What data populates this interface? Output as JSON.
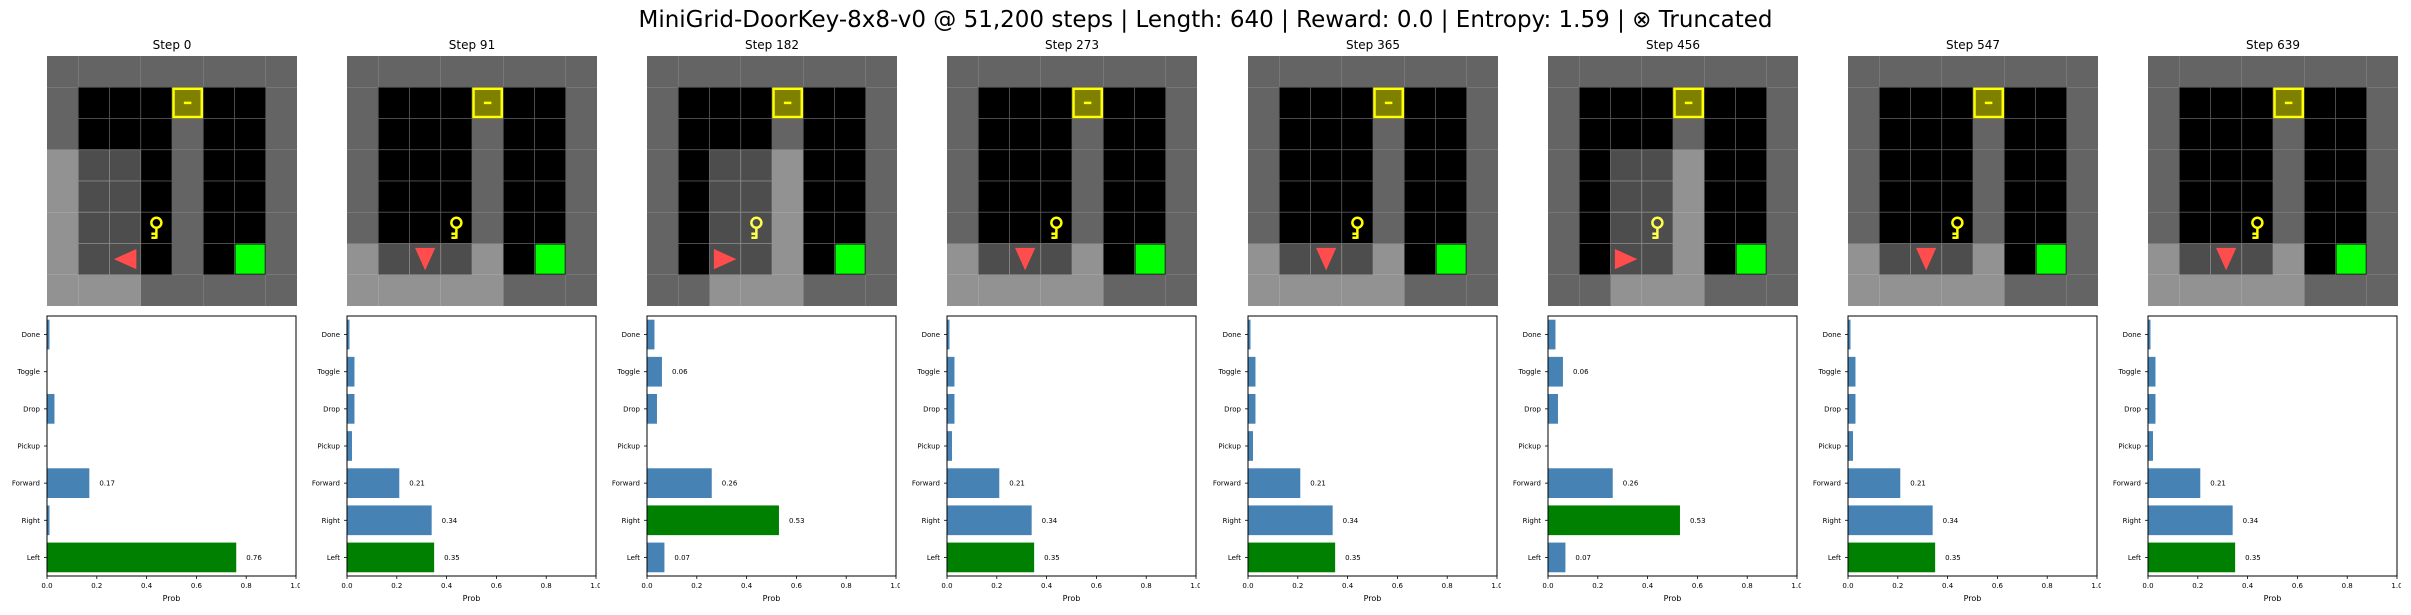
{
  "figure": {
    "title": "MiniGrid-DoorKey-8x8-v0 @ 51,200 steps | Length: 640 | Reward: 0.0 | Entropy: 1.59 | ⊗ Truncated"
  },
  "colors": {
    "wall": "#646464",
    "floor": "#000000",
    "grid_line": "#555555",
    "seen_overlay": "#9a9a9a",
    "door": "#7f7f00",
    "door_border": "#ffff00",
    "key": "#ffff00",
    "goal": "#00ff00",
    "agent": "#ff4c4c",
    "bar": "#4682b4",
    "bar_selected": "#008000"
  },
  "env": {
    "grid_size": 8,
    "door": {
      "col": 4,
      "row": 1
    },
    "key": {
      "col": 3,
      "row": 5
    },
    "goal": {
      "col": 6,
      "row": 6
    },
    "wall_column": 4
  },
  "steps": [
    {
      "label": "Step 0",
      "agent": {
        "col": 2,
        "row": 6,
        "dir": "left"
      },
      "view": {
        "col0": 0,
        "col1": 2,
        "row0": 3,
        "row1": 7
      }
    },
    {
      "label": "Step 91",
      "agent": {
        "col": 2,
        "row": 6,
        "dir": "down"
      },
      "view": {
        "col0": 0,
        "col1": 4,
        "row0": 6,
        "row1": 7
      }
    },
    {
      "label": "Step 182",
      "agent": {
        "col": 2,
        "row": 6,
        "dir": "right"
      },
      "view": {
        "col0": 2,
        "col1": 4,
        "row0": 3,
        "row1": 7
      }
    },
    {
      "label": "Step 273",
      "agent": {
        "col": 2,
        "row": 6,
        "dir": "down"
      },
      "view": {
        "col0": 0,
        "col1": 4,
        "row0": 6,
        "row1": 7
      }
    },
    {
      "label": "Step 365",
      "agent": {
        "col": 2,
        "row": 6,
        "dir": "down"
      },
      "view": {
        "col0": 0,
        "col1": 4,
        "row0": 6,
        "row1": 7
      }
    },
    {
      "label": "Step 456",
      "agent": {
        "col": 2,
        "row": 6,
        "dir": "right"
      },
      "view": {
        "col0": 2,
        "col1": 4,
        "row0": 3,
        "row1": 7
      }
    },
    {
      "label": "Step 547",
      "agent": {
        "col": 2,
        "row": 6,
        "dir": "down"
      },
      "view": {
        "col0": 0,
        "col1": 4,
        "row0": 6,
        "row1": 7
      }
    },
    {
      "label": "Step 639",
      "agent": {
        "col": 2,
        "row": 6,
        "dir": "down"
      },
      "view": {
        "col0": 0,
        "col1": 4,
        "row0": 6,
        "row1": 7
      }
    }
  ],
  "chart_data": [
    {
      "type": "bar",
      "orientation": "horizontal",
      "categories": [
        "Left",
        "Right",
        "Forward",
        "Pickup",
        "Drop",
        "Toggle",
        "Done"
      ],
      "values": [
        0.76,
        0.01,
        0.17,
        0.0,
        0.03,
        0.0,
        0.01
      ],
      "selected": "Left",
      "xlabel": "Prob",
      "xlim": [
        0,
        1
      ],
      "xticks": [
        "0.0",
        "0.2",
        "0.4",
        "0.6",
        "0.8",
        "1.0"
      ],
      "data_labels": [
        {
          "category": "Left",
          "text": "0.76"
        },
        {
          "category": "Forward",
          "text": "0.17"
        }
      ]
    },
    {
      "type": "bar",
      "orientation": "horizontal",
      "categories": [
        "Left",
        "Right",
        "Forward",
        "Pickup",
        "Drop",
        "Toggle",
        "Done"
      ],
      "values": [
        0.35,
        0.34,
        0.21,
        0.02,
        0.03,
        0.03,
        0.01
      ],
      "selected": "Left",
      "xlabel": "Prob",
      "xlim": [
        0,
        1
      ],
      "xticks": [
        "0.0",
        "0.2",
        "0.4",
        "0.6",
        "0.8",
        "1.0"
      ],
      "data_labels": [
        {
          "category": "Left",
          "text": "0.35"
        },
        {
          "category": "Right",
          "text": "0.34"
        },
        {
          "category": "Forward",
          "text": "0.21"
        }
      ]
    },
    {
      "type": "bar",
      "orientation": "horizontal",
      "categories": [
        "Left",
        "Right",
        "Forward",
        "Pickup",
        "Drop",
        "Toggle",
        "Done"
      ],
      "values": [
        0.07,
        0.53,
        0.26,
        0.0,
        0.04,
        0.06,
        0.03
      ],
      "selected": "Right",
      "xlabel": "Prob",
      "xlim": [
        0,
        1
      ],
      "xticks": [
        "0.0",
        "0.2",
        "0.4",
        "0.6",
        "0.8",
        "1.0"
      ],
      "data_labels": [
        {
          "category": "Left",
          "text": "0.07"
        },
        {
          "category": "Right",
          "text": "0.53"
        },
        {
          "category": "Forward",
          "text": "0.26"
        },
        {
          "category": "Toggle",
          "text": "0.06"
        }
      ]
    },
    {
      "type": "bar",
      "orientation": "horizontal",
      "categories": [
        "Left",
        "Right",
        "Forward",
        "Pickup",
        "Drop",
        "Toggle",
        "Done"
      ],
      "values": [
        0.35,
        0.34,
        0.21,
        0.02,
        0.03,
        0.03,
        0.01
      ],
      "selected": "Left",
      "xlabel": "Prob",
      "xlim": [
        0,
        1
      ],
      "xticks": [
        "0.0",
        "0.2",
        "0.4",
        "0.6",
        "0.8",
        "1.0"
      ],
      "data_labels": [
        {
          "category": "Left",
          "text": "0.35"
        },
        {
          "category": "Right",
          "text": "0.34"
        },
        {
          "category": "Forward",
          "text": "0.21"
        }
      ]
    },
    {
      "type": "bar",
      "orientation": "horizontal",
      "categories": [
        "Left",
        "Right",
        "Forward",
        "Pickup",
        "Drop",
        "Toggle",
        "Done"
      ],
      "values": [
        0.35,
        0.34,
        0.21,
        0.02,
        0.03,
        0.03,
        0.01
      ],
      "selected": "Left",
      "xlabel": "Prob",
      "xlim": [
        0,
        1
      ],
      "xticks": [
        "0.0",
        "0.2",
        "0.4",
        "0.6",
        "0.8",
        "1.0"
      ],
      "data_labels": [
        {
          "category": "Left",
          "text": "0.35"
        },
        {
          "category": "Right",
          "text": "0.34"
        },
        {
          "category": "Forward",
          "text": "0.21"
        }
      ]
    },
    {
      "type": "bar",
      "orientation": "horizontal",
      "categories": [
        "Left",
        "Right",
        "Forward",
        "Pickup",
        "Drop",
        "Toggle",
        "Done"
      ],
      "values": [
        0.07,
        0.53,
        0.26,
        0.0,
        0.04,
        0.06,
        0.03
      ],
      "selected": "Right",
      "xlabel": "Prob",
      "xlim": [
        0,
        1
      ],
      "xticks": [
        "0.0",
        "0.2",
        "0.4",
        "0.6",
        "0.8",
        "1.0"
      ],
      "data_labels": [
        {
          "category": "Left",
          "text": "0.07"
        },
        {
          "category": "Right",
          "text": "0.53"
        },
        {
          "category": "Forward",
          "text": "0.26"
        },
        {
          "category": "Toggle",
          "text": "0.06"
        }
      ]
    },
    {
      "type": "bar",
      "orientation": "horizontal",
      "categories": [
        "Left",
        "Right",
        "Forward",
        "Pickup",
        "Drop",
        "Toggle",
        "Done"
      ],
      "values": [
        0.35,
        0.34,
        0.21,
        0.02,
        0.03,
        0.03,
        0.01
      ],
      "selected": "Left",
      "xlabel": "Prob",
      "xlim": [
        0,
        1
      ],
      "xticks": [
        "0.0",
        "0.2",
        "0.4",
        "0.6",
        "0.8",
        "1.0"
      ],
      "data_labels": [
        {
          "category": "Left",
          "text": "0.35"
        },
        {
          "category": "Right",
          "text": "0.34"
        },
        {
          "category": "Forward",
          "text": "0.21"
        }
      ]
    },
    {
      "type": "bar",
      "orientation": "horizontal",
      "categories": [
        "Left",
        "Right",
        "Forward",
        "Pickup",
        "Drop",
        "Toggle",
        "Done"
      ],
      "values": [
        0.35,
        0.34,
        0.21,
        0.02,
        0.03,
        0.03,
        0.01
      ],
      "selected": "Left",
      "xlabel": "Prob",
      "xlim": [
        0,
        1
      ],
      "xticks": [
        "0.0",
        "0.2",
        "0.4",
        "0.6",
        "0.8",
        "1.0"
      ],
      "data_labels": [
        {
          "category": "Left",
          "text": "0.35"
        },
        {
          "category": "Right",
          "text": "0.34"
        },
        {
          "category": "Forward",
          "text": "0.21"
        }
      ]
    }
  ]
}
